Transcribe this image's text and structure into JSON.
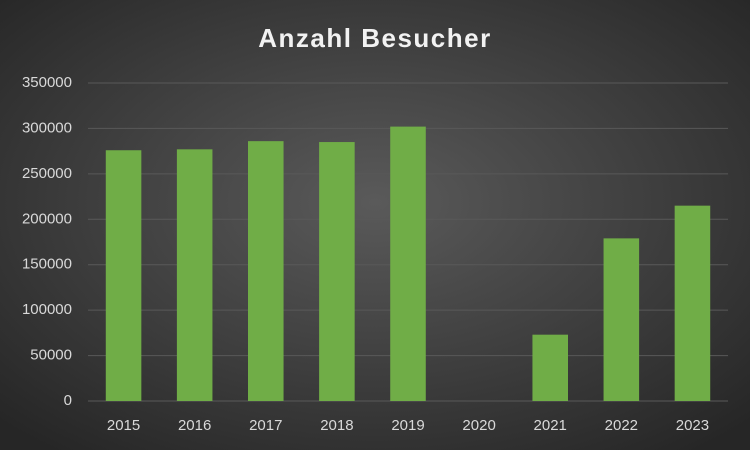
{
  "chart_data": {
    "type": "bar",
    "title": "Anzahl Besucher",
    "categories": [
      "2015",
      "2016",
      "2017",
      "2018",
      "2019",
      "2020",
      "2021",
      "2022",
      "2023"
    ],
    "values": [
      276000,
      277000,
      286000,
      285000,
      302000,
      0,
      73000,
      179000,
      215000
    ],
    "color": "#70ad47",
    "ylim": [
      0,
      350000
    ],
    "yticks": [
      0,
      50000,
      100000,
      150000,
      200000,
      250000,
      300000,
      350000
    ],
    "grid": true
  }
}
